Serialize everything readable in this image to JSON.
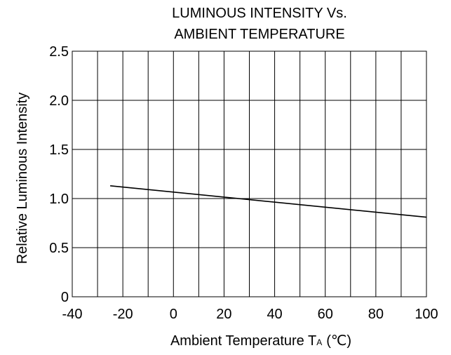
{
  "chart_data": {
    "type": "line",
    "title_lines": [
      "LUMINOUS INTENSITY Vs.",
      "AMBIENT TEMPERATURE"
    ],
    "xlabel": "Ambient Temperature T",
    "xlabel_subscript": "A",
    "xlabel_unit": "(℃)",
    "ylabel": "Relative Luminous Intensity",
    "xlim": [
      -40,
      100
    ],
    "ylim": [
      0,
      2.5
    ],
    "x_ticks": [
      -40,
      -20,
      0,
      20,
      40,
      60,
      80,
      100
    ],
    "x_tick_labels": [
      "-40",
      "-20",
      "0",
      "20",
      "40",
      "60",
      "80",
      "100"
    ],
    "y_ticks": [
      0,
      0.5,
      1.0,
      1.5,
      2.0,
      2.5
    ],
    "y_tick_labels": [
      "0",
      "0.5",
      "1.0",
      "1.5",
      "2.0",
      "2.5"
    ],
    "x_minor_step": 10,
    "grid": true,
    "series": [
      {
        "x": [
          -25,
          100
        ],
        "y": [
          1.13,
          0.81
        ]
      }
    ]
  }
}
